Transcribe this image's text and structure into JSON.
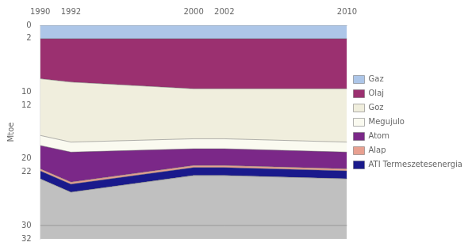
{
  "chart_data": {
    "type": "area",
    "stacked": true,
    "x": [
      1990,
      1992,
      2000,
      2002,
      2010
    ],
    "series": [
      {
        "color": "#c0c0c0",
        "values": [
          9.0,
          7.0,
          9.5,
          9.5,
          9.0
        ]
      },
      {
        "name": "ATI Termeszetesenergia",
        "color": "#1a1a8c",
        "values": [
          1.2,
          1.2,
          1.2,
          1.2,
          1.2
        ]
      },
      {
        "name": "Alap",
        "color": "#e8a090",
        "values": [
          0.3,
          0.3,
          0.3,
          0.3,
          0.3
        ]
      },
      {
        "name": "Atom",
        "color": "#7b2888",
        "values": [
          3.5,
          4.5,
          2.5,
          2.5,
          2.5
        ]
      },
      {
        "name": "Megujulo",
        "color": "#fafaf0",
        "values": [
          1.5,
          1.5,
          1.5,
          1.5,
          1.5
        ]
      },
      {
        "name": "Goz",
        "color": "#f0eedd",
        "values": [
          8.5,
          9.0,
          7.5,
          7.5,
          8.0
        ]
      },
      {
        "name": "Olaj",
        "color": "#9b3070",
        "values": [
          6.0,
          6.5,
          7.5,
          7.5,
          7.5
        ]
      },
      {
        "name": "Gaz",
        "color": "#adc6e8",
        "values": [
          2.0,
          2.0,
          2.0,
          2.0,
          2.0
        ]
      },
      {
        "type": "line",
        "color": "#999999",
        "values": [
          30,
          30,
          30,
          30,
          30
        ]
      }
    ],
    "xlim": [
      1990,
      2010
    ],
    "xticks": [
      1990,
      1992,
      2000,
      2002,
      2010
    ],
    "ylim": [
      32,
      0
    ],
    "yticks": [
      0,
      2,
      10,
      12,
      20,
      22,
      30,
      32
    ],
    "ylabel": "Mtoe",
    "grid": false,
    "legend": "right"
  }
}
